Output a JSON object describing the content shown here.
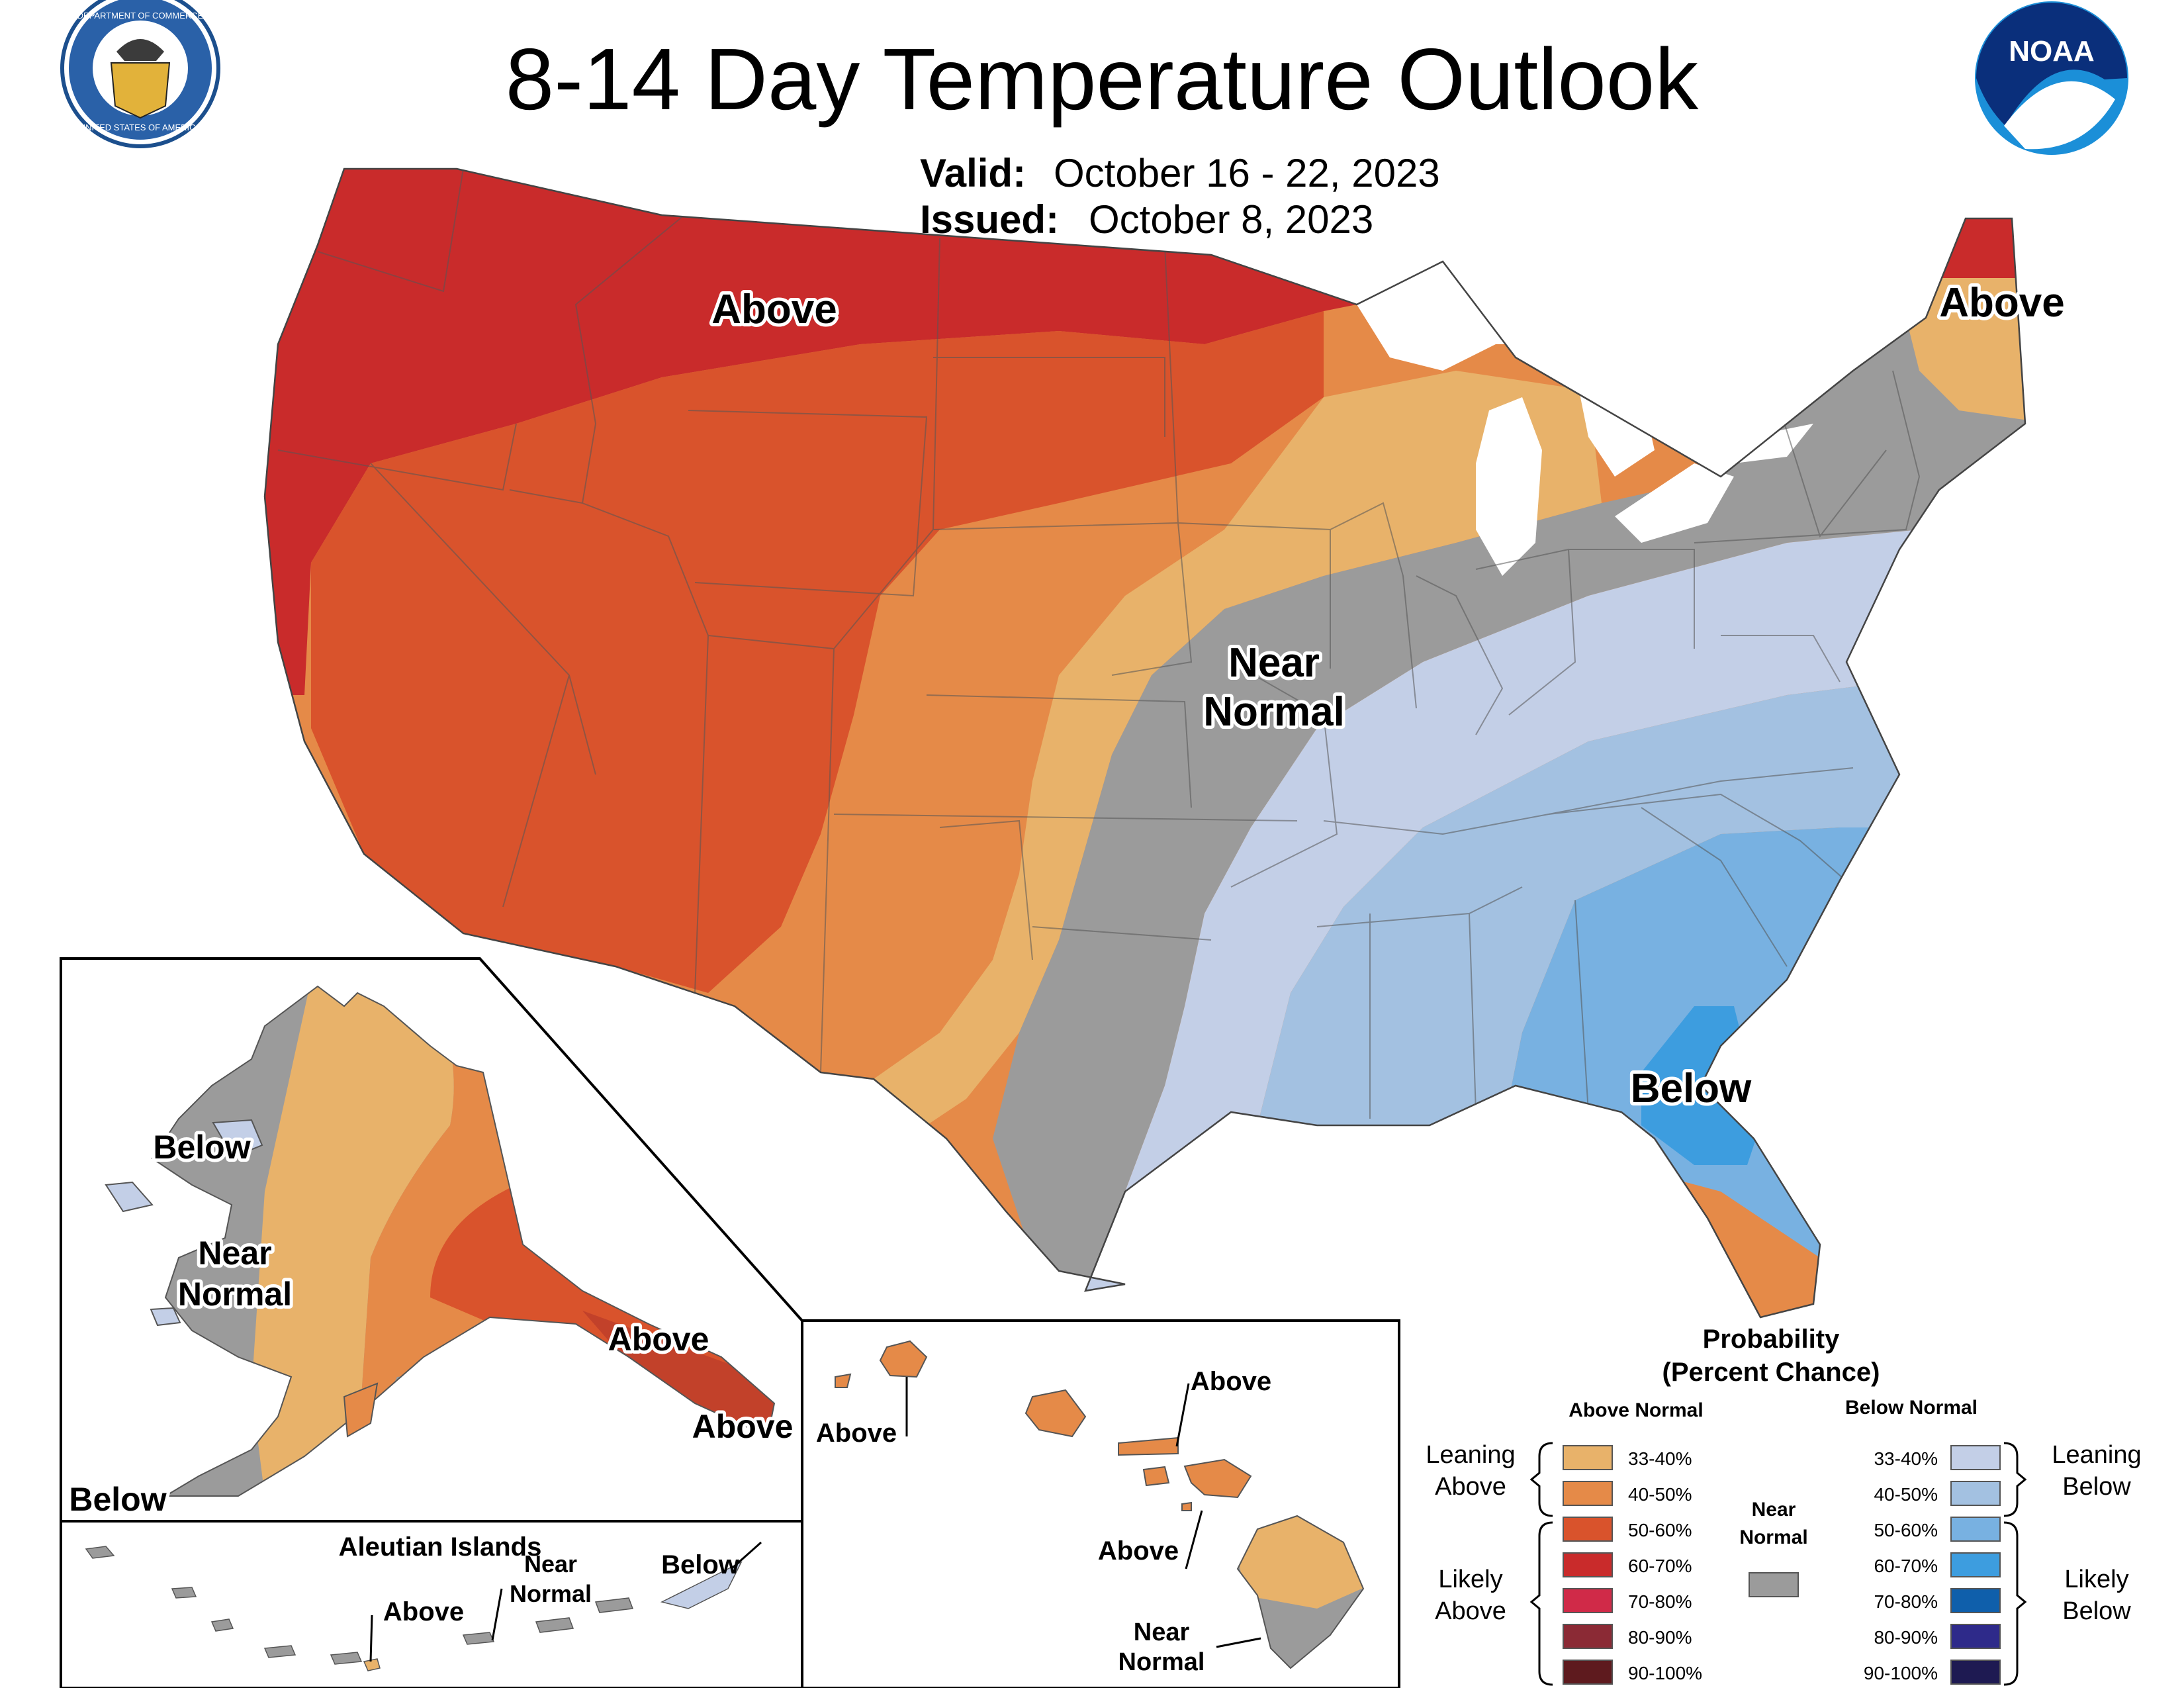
{
  "header": {
    "title": "8-14 Day Temperature Outlook",
    "valid_label": "Valid:",
    "valid_value": "October 16 - 22, 2023",
    "issued_label": "Issued:",
    "issued_value": "October 8, 2023",
    "doc_seal_icon": "department-of-commerce-seal",
    "noaa_logo_icon": "noaa-logo",
    "noaa_logo_text": "NOAA",
    "doc_seal_text_top": "DEPARTMENT OF COMMERCE",
    "doc_seal_text_bottom": "UNITED STATES OF AMERICA"
  },
  "conus_labels": {
    "above_west": "Above",
    "above_maine": "Above",
    "near_normal_line1": "Near",
    "near_normal_line2": "Normal",
    "below_southeast": "Below"
  },
  "alaska_labels": {
    "below_west": "Below",
    "near_normal_line1": "Near",
    "near_normal_line2": "Normal",
    "above_southeast_1": "Above",
    "above_southeast_2": "Above",
    "below_southwest": "Below"
  },
  "aleutian": {
    "title": "Aleutian Islands",
    "above": "Above",
    "near_line1": "Near",
    "near_line2": "Normal",
    "below": "Below"
  },
  "hawaii_labels": {
    "above_kauai": "Above",
    "above_molokai": "Above",
    "above_maui": "Above",
    "near_line1": "Near",
    "near_line2": "Normal"
  },
  "legend": {
    "title_line1": "Probability",
    "title_line2": "(Percent Chance)",
    "above_header": "Above Normal",
    "below_header": "Below Normal",
    "near_line1": "Near",
    "near_line2": "Normal",
    "leaning_above_1": "Leaning",
    "leaning_above_2": "Above",
    "likely_above_1": "Likely",
    "likely_above_2": "Above",
    "leaning_below_1": "Leaning",
    "leaning_below_2": "Below",
    "likely_below_1": "Likely",
    "likely_below_2": "Below",
    "above_bins": [
      {
        "label": "33-40%",
        "color": "#e8b26a"
      },
      {
        "label": "40-50%",
        "color": "#e58a48"
      },
      {
        "label": "50-60%",
        "color": "#d9532c"
      },
      {
        "label": "60-70%",
        "color": "#c92b2b"
      },
      {
        "label": "70-80%",
        "color": "#d02a48"
      },
      {
        "label": "80-90%",
        "color": "#8b2a35"
      },
      {
        "label": "90-100%",
        "color": "#5e1a1e"
      }
    ],
    "below_bins": [
      {
        "label": "33-40%",
        "color": "#c3cfe7"
      },
      {
        "label": "40-50%",
        "color": "#a3c1e1"
      },
      {
        "label": "50-60%",
        "color": "#78b1e1"
      },
      {
        "label": "60-70%",
        "color": "#3d9ddf"
      },
      {
        "label": "70-80%",
        "color": "#0f5fab"
      },
      {
        "label": "80-90%",
        "color": "#2e2a8a"
      },
      {
        "label": "90-100%",
        "color": "#1e1a52"
      }
    ],
    "near_color": "#9b9b9b"
  }
}
